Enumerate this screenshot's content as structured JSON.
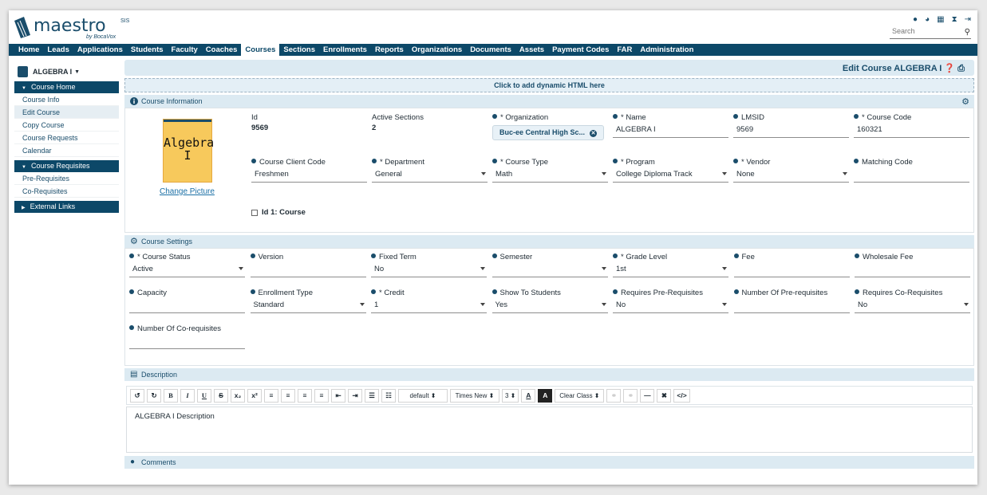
{
  "app": {
    "logo_text": "maestro",
    "logo_sup": "SIS",
    "logo_by": "by BocaVox"
  },
  "header": {
    "icons": [
      "user-icon",
      "chart-pie-icon",
      "calendar-icon",
      "hourglass-icon",
      "sign-out-icon"
    ],
    "search_placeholder": "Search"
  },
  "nav": [
    "Home",
    "Leads",
    "Applications",
    "Students",
    "Faculty",
    "Coaches",
    "Courses",
    "Sections",
    "Enrollments",
    "Reports",
    "Organizations",
    "Documents",
    "Assets",
    "Payment Codes",
    "FAR",
    "Administration"
  ],
  "nav_active": "Courses",
  "sidebar": {
    "course_title": "ALGEBRA I",
    "course_home": "Course Home",
    "home_items": [
      "Course Info",
      "Edit Course",
      "Copy Course",
      "Course Requests",
      "Calendar"
    ],
    "selected": "Edit Course",
    "requisites": "Course Requisites",
    "req_items": [
      "Pre-Requisites",
      "Co-Requisites"
    ],
    "external": "External Links"
  },
  "page_title": "Edit Course ALGEBRA I",
  "dynamic_html": "Click to add dynamic HTML here",
  "course_info": {
    "title": "Course Information",
    "picture_text_1": "Algebra",
    "picture_text_2": "I",
    "change_picture": "Change Picture",
    "id_label": "Id",
    "id_value": "9569",
    "active_sections_label": "Active Sections",
    "active_sections_value": "2",
    "organization_label": "* Organization",
    "organization_value": "Buc-ee Central High Sc...",
    "name_label": "* Name",
    "name_value": "ALGEBRA I",
    "lmsid_label": "LMSID",
    "lmsid_value": "9569",
    "course_code_label": "* Course Code",
    "course_code_value": "160321",
    "client_code_label": "Course Client Code",
    "client_code_value": "Freshmen",
    "department_label": "* Department",
    "department_value": "General",
    "course_type_label": "* Course Type",
    "course_type_value": "Math",
    "program_label": "* Program",
    "program_value": "College Diploma Track",
    "vendor_label": "* Vendor",
    "vendor_value": "None",
    "matching_code_label": "Matching Code",
    "matching_code_value": "",
    "checkbox_label": "Id 1: Course"
  },
  "course_settings": {
    "title": "Course Settings",
    "fields": [
      {
        "label": "* Course Status",
        "value": "Active",
        "dropdown": true
      },
      {
        "label": "Version",
        "value": "",
        "dropdown": false
      },
      {
        "label": "Fixed Term",
        "value": "No",
        "dropdown": true
      },
      {
        "label": "Semester",
        "value": "",
        "dropdown": true
      },
      {
        "label": "* Grade Level",
        "value": "1st",
        "dropdown": true
      },
      {
        "label": "Fee",
        "value": "",
        "dropdown": false
      },
      {
        "label": "Wholesale Fee",
        "value": "",
        "dropdown": false
      },
      {
        "label": "Capacity",
        "value": "",
        "dropdown": false
      },
      {
        "label": "Enrollment Type",
        "value": "Standard",
        "dropdown": true
      },
      {
        "label": "* Credit",
        "value": "1",
        "dropdown": true
      },
      {
        "label": "Show To Students",
        "value": "Yes",
        "dropdown": true
      },
      {
        "label": "Requires Pre-Requisites",
        "value": "No",
        "dropdown": true
      },
      {
        "label": "Number Of Pre-requisites",
        "value": "",
        "dropdown": false
      },
      {
        "label": "Requires Co-Requisites",
        "value": "No",
        "dropdown": true
      },
      {
        "label": "Number Of Co-requisites",
        "value": "",
        "dropdown": false
      }
    ]
  },
  "description": {
    "title": "Description",
    "toolbar": [
      "↺",
      "↻",
      "B",
      "I",
      "U",
      "S",
      "x₂",
      "x²",
      "≡",
      "≡",
      "≡",
      "≡",
      "⇤",
      "⇥",
      "☰",
      "☷",
      "default ⬍",
      "Times New ⬍",
      "3 ⬍",
      "A",
      "A",
      "Clear Class ⬍",
      "⚭",
      "⚭",
      "—",
      "✖",
      "</>"
    ],
    "content": "ALGEBRA I Description"
  },
  "comments": {
    "title": "Comments"
  }
}
